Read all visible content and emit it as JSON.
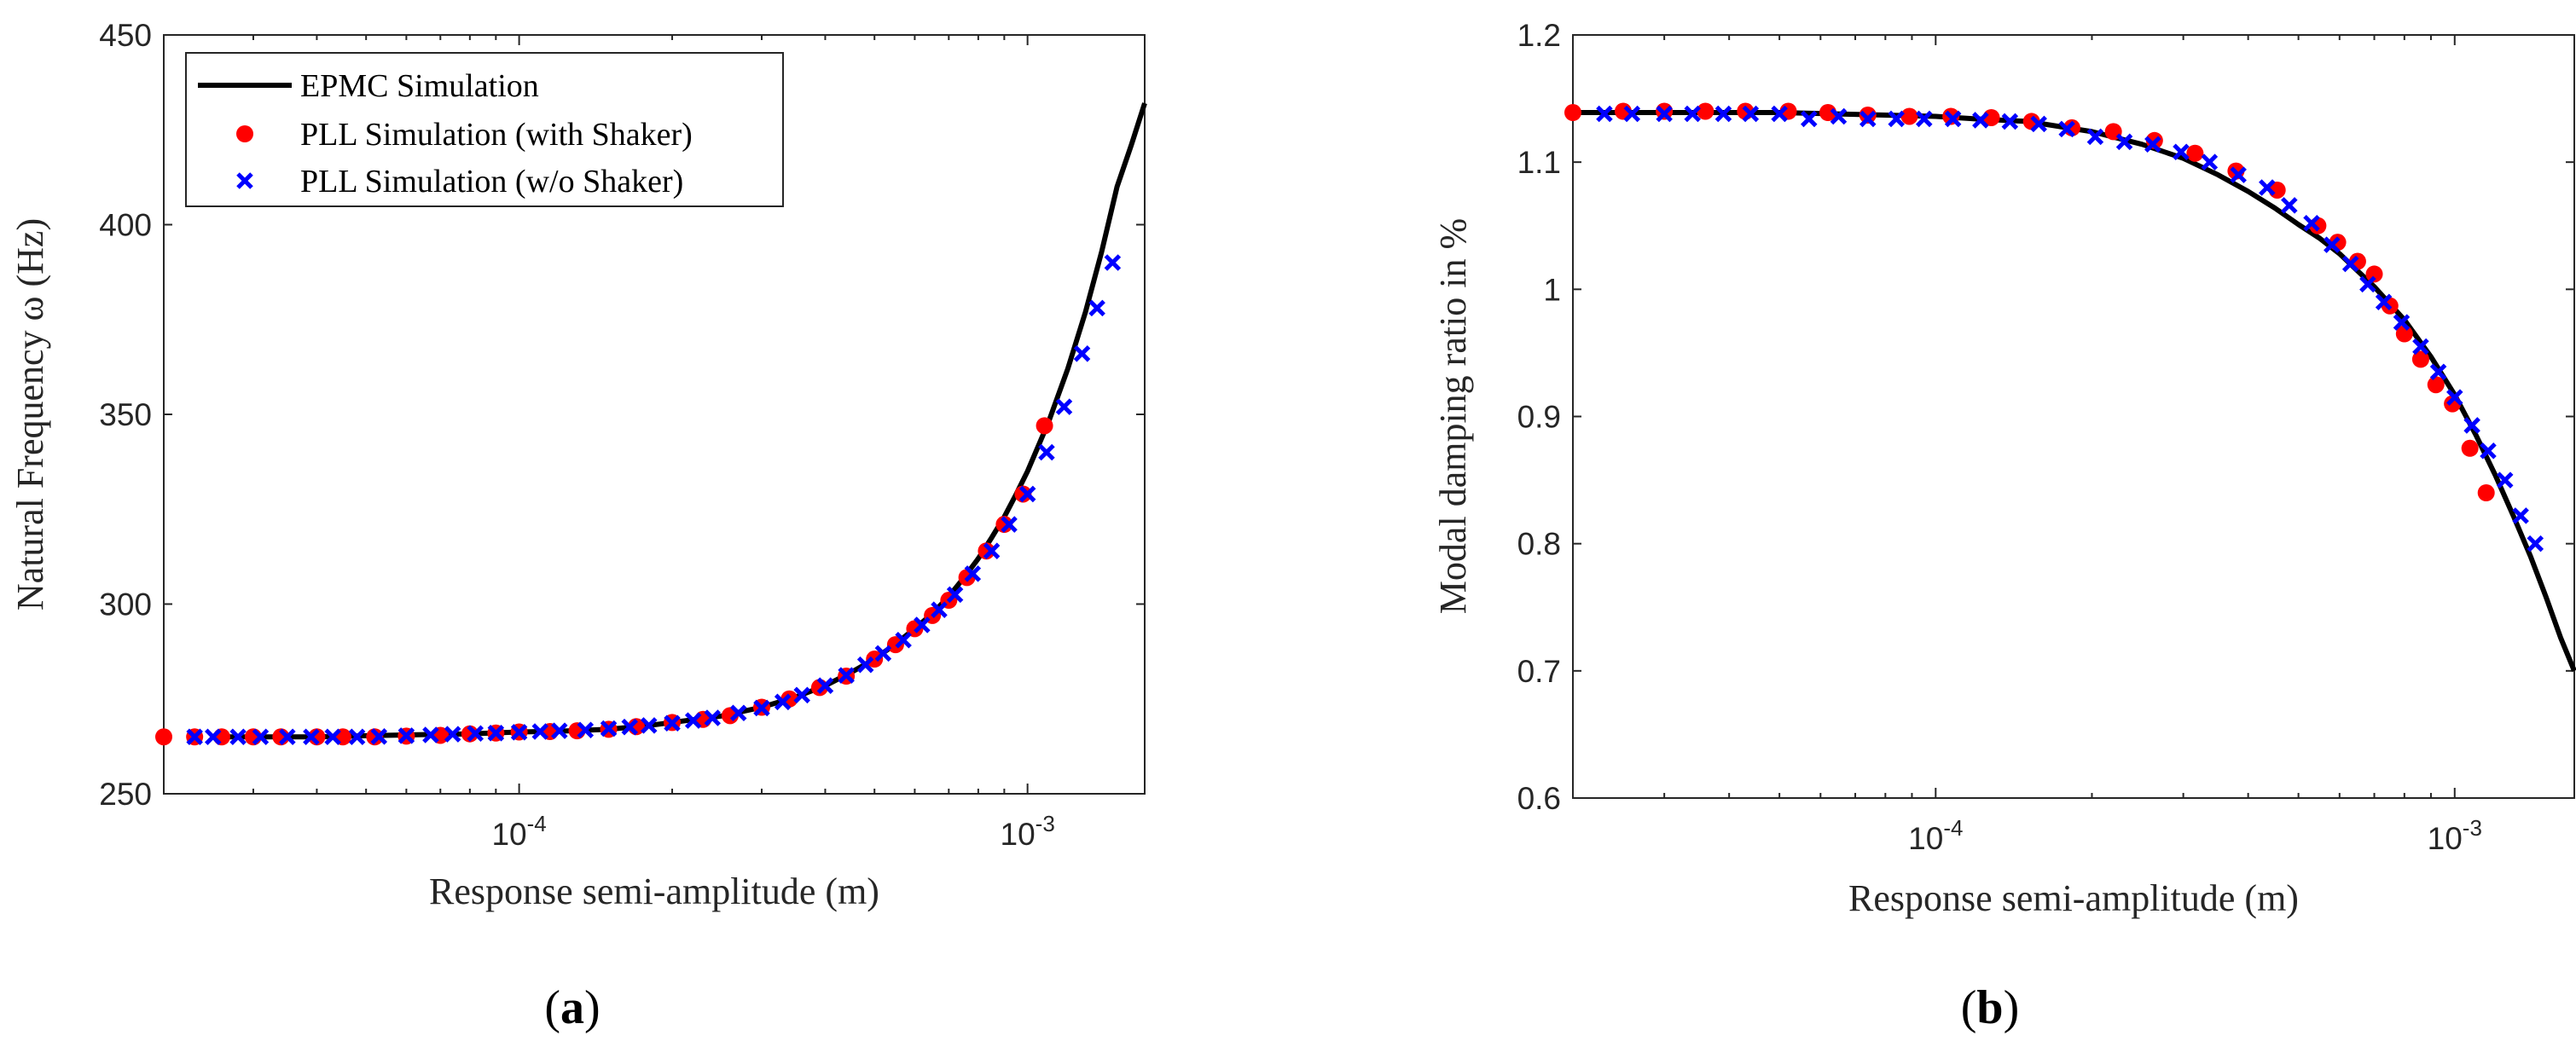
{
  "chart_data": [
    {
      "type": "scatter",
      "panel_label": "a",
      "xscale": "log",
      "xlim": [
        2e-05,
        0.0017
      ],
      "ylim": [
        250,
        450
      ],
      "yticks": [
        250,
        300,
        350,
        400,
        450
      ],
      "xticks": [
        {
          "value": 0.0001,
          "base": "10",
          "exp": "-4"
        },
        {
          "value": 0.001,
          "base": "10",
          "exp": "-3"
        }
      ],
      "xlabel": "Response semi-amplitude (m)",
      "ylabel": "Natural Frequency ω (Hz)",
      "legend": [
        "EPMC Simulation",
        "PLL Simulation (with Shaker)",
        "PLL Simulation (w/o Shaker)"
      ],
      "legend_position": "top-left",
      "series": [
        {
          "name": "EPMC Simulation",
          "kind": "line",
          "color": "#000000",
          "x": [
            2.5e-05,
            3e-05,
            4e-05,
            5e-05,
            6e-05,
            8e-05,
            0.0001,
            0.00012,
            0.00015,
            0.00018,
            0.0002,
            0.00025,
            0.0003,
            0.00035,
            0.0004,
            0.00045,
            0.0005,
            0.00055,
            0.0006,
            0.00065,
            0.0007,
            0.00075,
            0.0008,
            0.00085,
            0.0009,
            0.00095,
            0.001,
            0.0011,
            0.0012,
            0.0013,
            0.0014,
            0.0015,
            0.0016,
            0.0017
          ],
          "y": [
            265,
            265,
            265,
            265.3,
            265.5,
            265.8,
            266.3,
            266.5,
            267,
            268,
            268.8,
            270.5,
            272.8,
            275.5,
            278.5,
            282,
            285.5,
            289.5,
            293.5,
            297.5,
            302,
            307,
            312,
            317.5,
            323,
            329,
            335,
            348,
            362,
            377,
            393,
            410,
            421,
            432
          ]
        },
        {
          "name": "PLL Simulation (with Shaker)",
          "kind": "marker-dot",
          "color": "#ff0000",
          "x": [
            2e-05,
            2.3e-05,
            2.6e-05,
            3e-05,
            3.4e-05,
            4e-05,
            4.5e-05,
            5.2e-05,
            6e-05,
            7e-05,
            8e-05,
            9e-05,
            0.0001,
            0.000115,
            0.00013,
            0.00015,
            0.00017,
            0.0002,
            0.00023,
            0.00026,
            0.0003,
            0.00034,
            0.00039,
            0.00044,
            0.0005,
            0.00055,
            0.0006,
            0.00065,
            0.0007,
            0.00076,
            0.00083,
            0.0009,
            0.00098,
            0.00108
          ],
          "y": [
            265,
            265,
            265,
            265,
            265,
            265,
            265,
            265,
            265.2,
            265.4,
            265.8,
            266,
            266.3,
            266.4,
            266.6,
            267,
            267.7,
            268.8,
            269.6,
            270.6,
            272.8,
            275,
            278,
            281,
            285.5,
            289.3,
            293.5,
            297,
            301,
            307,
            314,
            321,
            329,
            347
          ]
        },
        {
          "name": "PLL Simulation (w/o Shaker)",
          "kind": "marker-x",
          "color": "#0000ff",
          "x": [
            2.3e-05,
            2.5e-05,
            2.8e-05,
            3.1e-05,
            3.5e-05,
            3.9e-05,
            4.3e-05,
            4.8e-05,
            5.3e-05,
            6e-05,
            6.7e-05,
            7.4e-05,
            8.2e-05,
            9e-05,
            0.0001,
            0.00011,
            0.00012,
            0.000135,
            0.00015,
            0.000165,
            0.00018,
            0.0002,
            0.00022,
            0.00024,
            0.00027,
            0.0003,
            0.00033,
            0.00036,
            0.0004,
            0.00044,
            0.00048,
            0.00052,
            0.00057,
            0.00062,
            0.00067,
            0.00072,
            0.00078,
            0.00085,
            0.00092,
            0.001,
            0.00109,
            0.00118,
            0.00128,
            0.00137,
            0.00147
          ],
          "y": [
            265,
            265,
            265,
            265,
            265,
            265,
            265,
            265,
            265.1,
            265.3,
            265.5,
            265.7,
            265.9,
            266,
            266.2,
            266.4,
            266.6,
            266.8,
            267.2,
            267.6,
            268,
            268.6,
            269.3,
            270,
            271.3,
            272.6,
            274.2,
            276,
            278.5,
            281.2,
            284,
            287,
            290.5,
            294.5,
            298.5,
            302.5,
            308,
            314,
            321,
            329,
            340,
            352,
            366,
            378,
            390
          ]
        }
      ]
    },
    {
      "type": "scatter",
      "panel_label": "b",
      "xscale": "log",
      "xlim": [
        2e-05,
        0.0017
      ],
      "ylim": [
        0.6,
        1.2
      ],
      "yticks": [
        0.6,
        0.7,
        0.8,
        0.9,
        1,
        1.1,
        1.2
      ],
      "ytick_labels": [
        "0.6",
        "0.7",
        "0.8",
        "0.9",
        "1",
        "1.1",
        "1.2"
      ],
      "xticks": [
        {
          "value": 0.0001,
          "base": "10",
          "exp": "-4"
        },
        {
          "value": 0.001,
          "base": "10",
          "exp": "-3"
        }
      ],
      "xlabel": "Response semi-amplitude (m)",
      "ylabel": "Modal damping ratio in %",
      "series": [
        {
          "name": "EPMC Simulation",
          "kind": "line",
          "color": "#000000",
          "x": [
            2e-05,
            3e-05,
            5e-05,
            8e-05,
            0.0001,
            0.00012,
            0.00015,
            0.0002,
            0.00025,
            0.0003,
            0.00035,
            0.0004,
            0.00045,
            0.0005,
            0.00055,
            0.0006,
            0.0007,
            0.0008,
            0.0009,
            0.001,
            0.0011,
            0.0012,
            0.0013,
            0.0014,
            0.0015,
            0.0016,
            0.0017
          ],
          "y": [
            1.139,
            1.139,
            1.139,
            1.137,
            1.136,
            1.134,
            1.132,
            1.124,
            1.114,
            1.103,
            1.09,
            1.077,
            1.064,
            1.051,
            1.04,
            1.028,
            1.002,
            0.976,
            0.947,
            0.917,
            0.885,
            0.853,
            0.821,
            0.79,
            0.758,
            0.726,
            0.7
          ]
        },
        {
          "name": "PLL Simulation (with Shaker)",
          "kind": "marker-dot",
          "color": "#ff0000",
          "x": [
            2e-05,
            2.5e-05,
            3e-05,
            3.6e-05,
            4.3e-05,
            5.2e-05,
            6.2e-05,
            7.4e-05,
            8.9e-05,
            0.000107,
            0.000128,
            0.000153,
            0.000183,
            0.00022,
            0.000264,
            0.000316,
            0.000379,
            0.000455,
            0.000545,
            0.000595,
            0.00065,
            0.0007,
            0.00075,
            0.0008,
            0.00086,
            0.00092,
            0.00099,
            0.00107,
            0.00115
          ],
          "y": [
            1.139,
            1.14,
            1.14,
            1.14,
            1.14,
            1.14,
            1.139,
            1.137,
            1.136,
            1.136,
            1.135,
            1.132,
            1.127,
            1.124,
            1.117,
            1.107,
            1.093,
            1.078,
            1.05,
            1.037,
            1.022,
            1.012,
            0.987,
            0.965,
            0.945,
            0.925,
            0.91,
            0.875,
            0.84
          ]
        },
        {
          "name": "PLL Simulation (w/o Shaker)",
          "kind": "marker-x",
          "color": "#0000ff",
          "x": [
            2.3e-05,
            2.6e-05,
            3e-05,
            3.4e-05,
            3.9e-05,
            4.4e-05,
            5e-05,
            5.7e-05,
            6.5e-05,
            7.4e-05,
            8.4e-05,
            9.5e-05,
            0.000108,
            0.000122,
            0.000139,
            0.000158,
            0.000179,
            0.000203,
            0.000231,
            0.000262,
            0.000297,
            0.000337,
            0.000383,
            0.000435,
            0.00048,
            0.00053,
            0.00058,
            0.00063,
            0.00068,
            0.00073,
            0.00079,
            0.00086,
            0.00093,
            0.001,
            0.00108,
            0.00116,
            0.00125,
            0.00134,
            0.00143
          ],
          "y": [
            1.138,
            1.138,
            1.138,
            1.138,
            1.138,
            1.138,
            1.138,
            1.134,
            1.136,
            1.134,
            1.134,
            1.134,
            1.134,
            1.133,
            1.132,
            1.13,
            1.126,
            1.12,
            1.116,
            1.114,
            1.108,
            1.1,
            1.09,
            1.08,
            1.066,
            1.052,
            1.035,
            1.02,
            1.004,
            0.99,
            0.974,
            0.955,
            0.935,
            0.915,
            0.893,
            0.873,
            0.85,
            0.822,
            0.8
          ]
        }
      ]
    }
  ],
  "panel_labels": {
    "a": "a",
    "b": "b"
  }
}
